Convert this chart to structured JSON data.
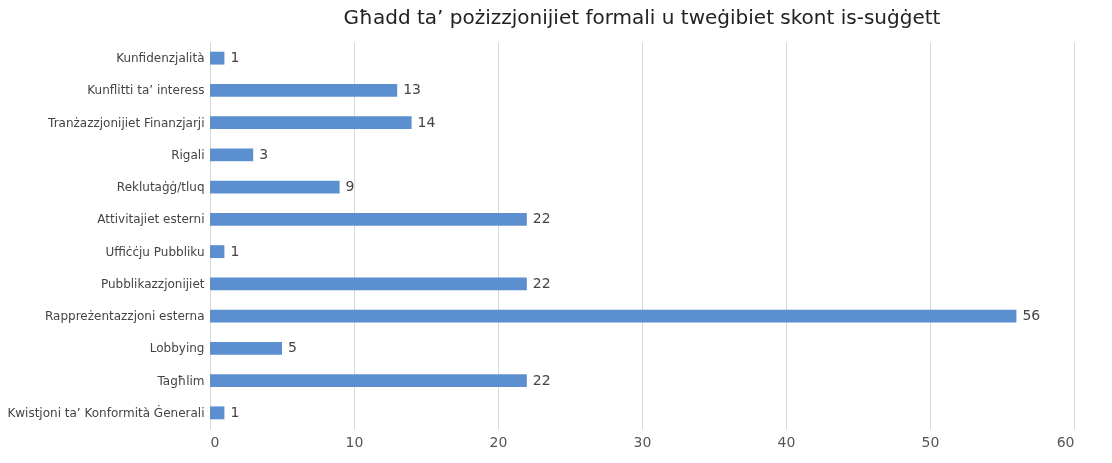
{
  "chart_data": {
    "type": "bar",
    "orientation": "horizontal",
    "title": "Għadd ta’ pożizzjonijiet formali u tweġibiet skont is-suġġett",
    "categories": [
      "Kunfidenzjalità",
      "Kunflitti ta’ interess",
      "Tranżazzjonijiet Finanzjarji",
      "Rigali",
      "Reklutaġġ/tluq",
      "Attivitajiet esterni",
      "Uffiċċju Pubbliku",
      "Pubblikazzjonijiet",
      "Rappreżentazzjoni esterna",
      "Lobbying",
      "Tagħlim",
      "Kwistjoni ta’ Konformità Ġenerali"
    ],
    "values": [
      1,
      13,
      14,
      3,
      9,
      22,
      1,
      22,
      56,
      5,
      22,
      1
    ],
    "color": "#5b8fd0",
    "xlim": [
      0,
      60
    ],
    "xticks": [
      0,
      10,
      20,
      30,
      40,
      50,
      60
    ],
    "grid": "x",
    "data_labels": true
  }
}
